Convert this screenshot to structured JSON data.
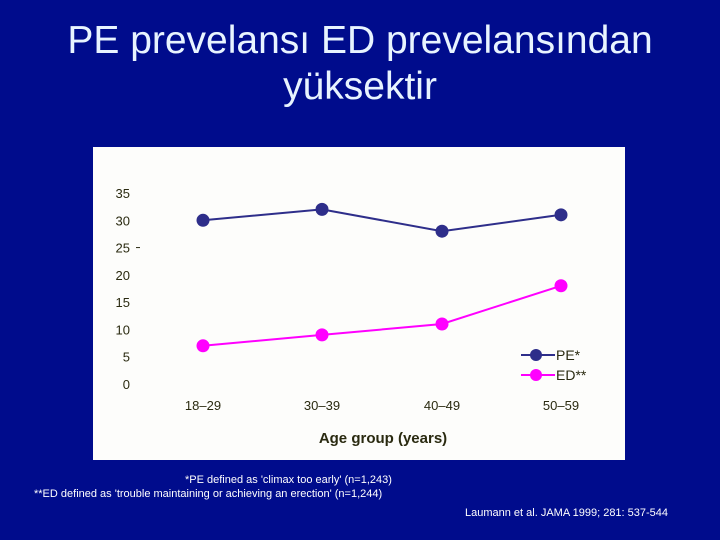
{
  "slide": {
    "title_line1": "PE prevelansı ED prevelansından",
    "title_line2": "yüksektir",
    "footnote_pe": "*PE defined as 'climax too early' (n=1,243)",
    "footnote_ed": "**ED defined as 'trouble maintaining or achieving an erection' (n=1,244)",
    "citation": "Laumann et al. JAMA 1999; 281: 537-544"
  },
  "colors": {
    "background": "#000c8c",
    "panel": "#fdfdfb",
    "pe_series": "#2e2e8a",
    "ed_series": "#ff00ff",
    "axis_text": "#2a2a10"
  },
  "chart_data": {
    "type": "line",
    "title": "",
    "xlabel": "Age group (years)",
    "ylabel": "",
    "categories": [
      "18–29",
      "30–39",
      "40–49",
      "50–59"
    ],
    "yticks": [
      "0",
      "5",
      "10",
      "15",
      "20",
      "25",
      "30",
      "35"
    ],
    "ylim": [
      0,
      35
    ],
    "grid": false,
    "legend_position": "lower right",
    "series": [
      {
        "name": "PE*",
        "color": "#2e2e8a",
        "values": [
          30,
          32,
          28,
          31
        ]
      },
      {
        "name": "ED**",
        "color": "#ff00ff",
        "values": [
          7,
          9,
          11,
          18
        ]
      }
    ]
  }
}
